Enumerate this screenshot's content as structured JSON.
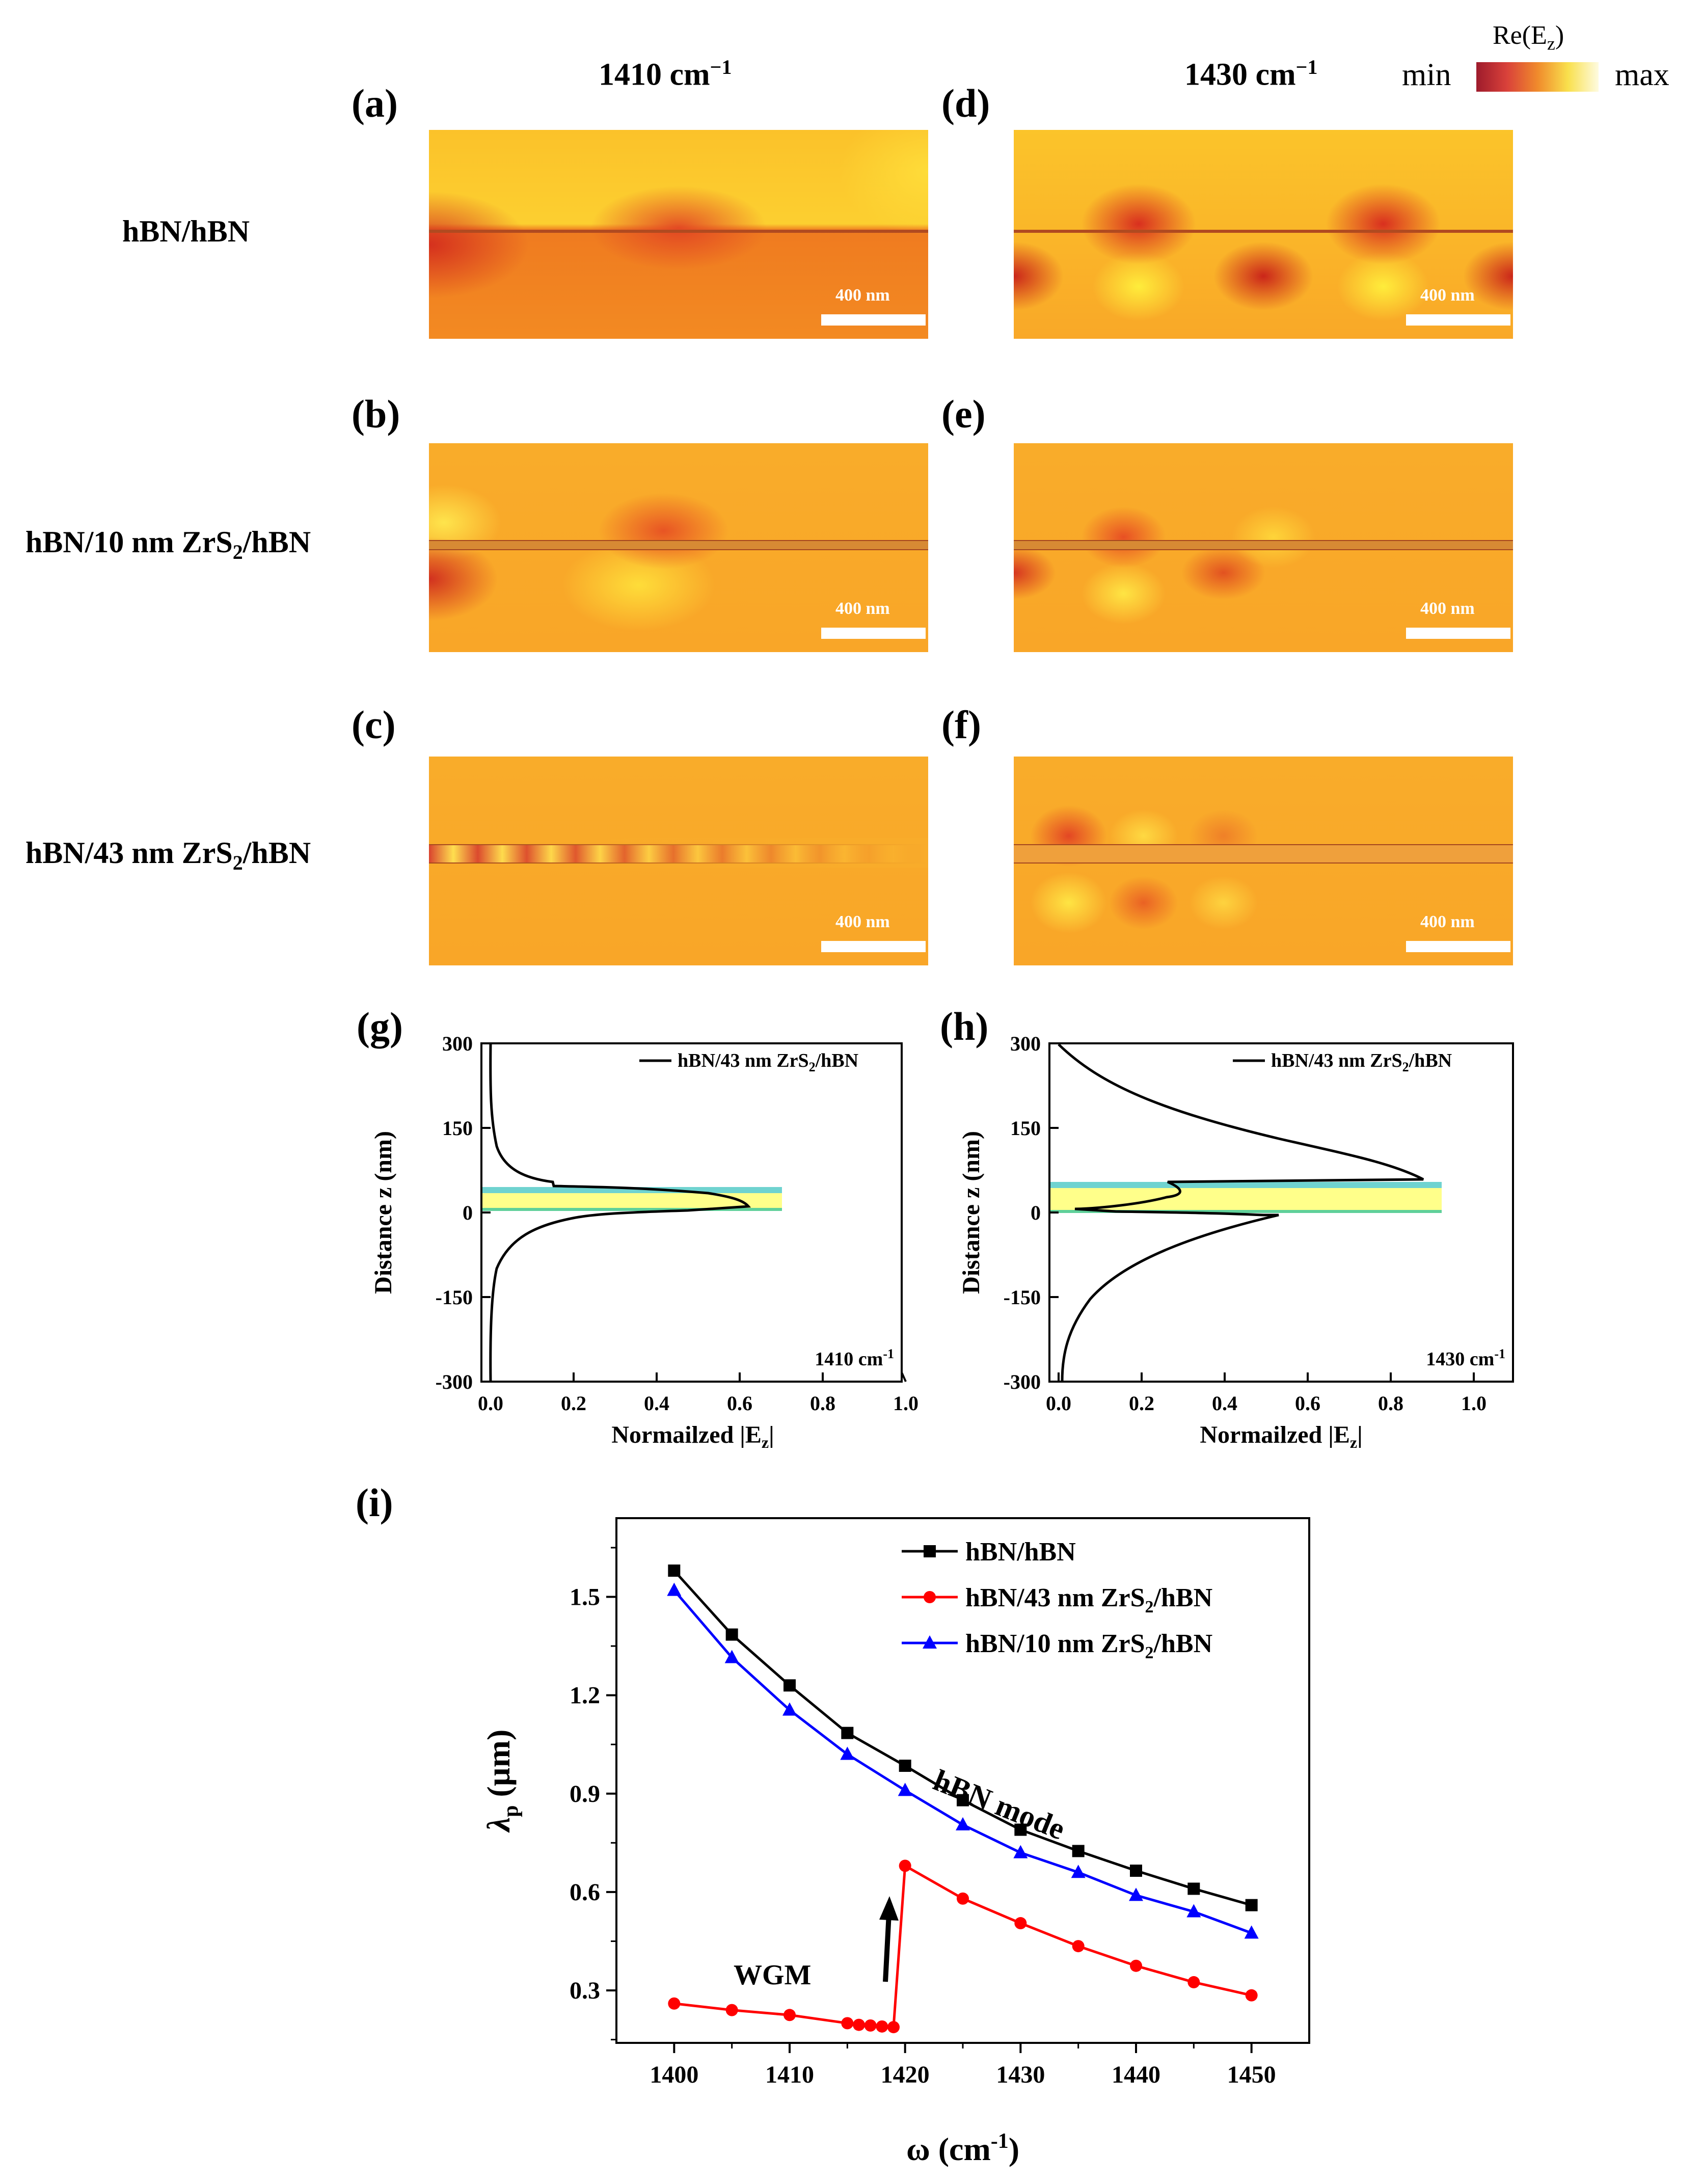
{
  "colorbar": {
    "title": "Re(E",
    "title_sub": "z",
    "title_end": ")",
    "min_label": "min",
    "max_label": "max"
  },
  "columns": [
    {
      "prefix": "1410 cm",
      "sup": "−1"
    },
    {
      "prefix": "1430 cm",
      "sup": "−1"
    }
  ],
  "panels": {
    "a": "(a)",
    "b": "(b)",
    "c": "(c)",
    "d": "(d)",
    "e": "(e)",
    "f": "(f)",
    "g": "(g)",
    "h": "(h)",
    "i": "(i)"
  },
  "rows": [
    {
      "pre": "hBN/hBN",
      "sub": "",
      "post": ""
    },
    {
      "pre": "hBN/10 nm ZrS",
      "sub": "2",
      "post": "/hBN"
    },
    {
      "pre": "hBN/43 nm ZrS",
      "sub": "2",
      "post": "/hBN"
    }
  ],
  "scale_bar": "400 nm",
  "profiles": [
    {
      "legend_pre": "hBN/43 nm ZrS",
      "legend_sub": "2",
      "legend_post": "/hBN",
      "freq_label": "1410 cm",
      "freq_sup": "-1"
    },
    {
      "legend_pre": "hBN/43 nm ZrS",
      "legend_sub": "2",
      "legend_post": "/hBN",
      "freq_label": "1430 cm",
      "freq_sup": "-1"
    }
  ],
  "profile_axes": {
    "ylabel": "Distance z (nm)",
    "xlabel_pre": "Normailzed |E",
    "xlabel_sub": "z",
    "xlabel_post": "|",
    "yticks": [
      "300",
      "150",
      "0",
      "-150",
      "-300"
    ],
    "xticks": [
      "0.0",
      "0.2",
      "0.4",
      "0.6",
      "0.8",
      "1.0"
    ]
  },
  "annotations": {
    "wgm": "WGM",
    "hbn_mode": "hBN mode"
  },
  "chart_data": [
    {
      "type": "line",
      "panel": "i",
      "xlabel": "ω (cm",
      "xlabel_sup": "-1",
      "xlabel_end": ")",
      "ylabel": "λ",
      "ylabel_sub": "p",
      "ylabel_end": " (µm)",
      "xlim": [
        1395,
        1455
      ],
      "ylim": [
        0.14,
        1.74
      ],
      "xticks": [
        1400,
        1410,
        1420,
        1430,
        1440,
        1450
      ],
      "yticks": [
        0.3,
        0.6,
        0.9,
        1.2,
        1.5
      ],
      "ytick_labels": [
        "0.3",
        "0.6",
        "0.9",
        "1.2",
        "1.5"
      ],
      "series": [
        {
          "name": "hBN/hBN",
          "name_sub": "",
          "name_post": "",
          "color": "#000000",
          "marker": "square",
          "x": [
            1400,
            1405,
            1410,
            1415,
            1420,
            1425,
            1430,
            1435,
            1440,
            1445,
            1450
          ],
          "values": [
            1.58,
            1.385,
            1.23,
            1.085,
            0.985,
            0.88,
            0.79,
            0.725,
            0.665,
            0.61,
            0.56
          ]
        },
        {
          "name": "hBN/43 nm ZrS",
          "name_sub": "2",
          "name_post": "/hBN",
          "color": "#ff0000",
          "marker": "circle",
          "x": [
            1400,
            1405,
            1410,
            1415,
            1416,
            1417,
            1418,
            1419,
            1420,
            1425,
            1430,
            1435,
            1440,
            1445,
            1450
          ],
          "values": [
            0.26,
            0.24,
            0.225,
            0.2,
            0.195,
            0.193,
            0.19,
            0.188,
            0.68,
            0.58,
            0.505,
            0.435,
            0.375,
            0.325,
            0.285
          ]
        },
        {
          "name": "hBN/10 nm ZrS",
          "name_sub": "2",
          "name_post": "/hBN",
          "color": "#0000ff",
          "marker": "triangle",
          "x": [
            1400,
            1405,
            1410,
            1415,
            1420,
            1425,
            1430,
            1435,
            1440,
            1445,
            1450
          ],
          "values": [
            1.52,
            1.315,
            1.155,
            1.02,
            0.91,
            0.805,
            0.72,
            0.66,
            0.59,
            0.54,
            0.475
          ]
        }
      ]
    }
  ]
}
